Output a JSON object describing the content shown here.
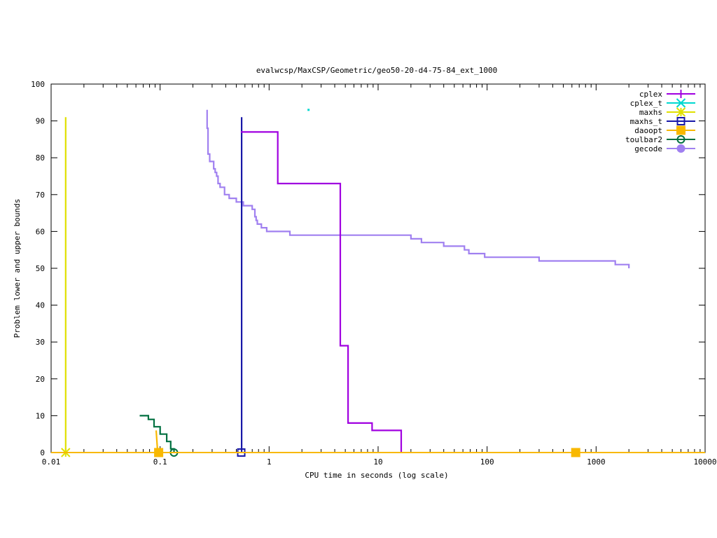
{
  "chart_data": {
    "type": "line",
    "title": "evalwcsp/MaxCSP/Geometric/geo50-20-d4-75-84_ext_1000",
    "xlabel": "CPU time in seconds (log scale)",
    "ylabel": "Problem lower and upper bounds",
    "xscale": "log",
    "xlim": [
      0.01,
      10000
    ],
    "ylim": [
      0,
      100
    ],
    "x_ticks": [
      0.01,
      0.1,
      1,
      10,
      100,
      1000,
      10000
    ],
    "x_tick_labels": [
      "0.01",
      "0.1",
      "1",
      "10",
      "100",
      "1000",
      "10000"
    ],
    "y_ticks": [
      0,
      10,
      20,
      30,
      40,
      50,
      60,
      70,
      80,
      90,
      100
    ],
    "y_tick_labels": [
      "0",
      "10",
      "20",
      "30",
      "40",
      "50",
      "60",
      "70",
      "80",
      "90",
      "100"
    ],
    "grid": false,
    "legend_position": "top-right",
    "series": [
      {
        "name": "cplex",
        "color": "#a000e0",
        "marker": "plus",
        "upper": [
          [
            0.55,
            87
          ],
          [
            1.2,
            87
          ],
          [
            1.2,
            73
          ],
          [
            4.5,
            73
          ],
          [
            4.5,
            29
          ],
          [
            5.3,
            29
          ],
          [
            5.3,
            8
          ],
          [
            8.8,
            8
          ],
          [
            8.8,
            6
          ],
          [
            16.3,
            6
          ],
          [
            16.3,
            0
          ]
        ],
        "lower": [],
        "markers": []
      },
      {
        "name": "cplex_t",
        "color": "#00d8d0",
        "marker": "x",
        "upper": [
          [
            2.3,
            93
          ]
        ],
        "lower": [],
        "markers": []
      },
      {
        "name": "maxhs",
        "color": "#e0e000",
        "marker": "star",
        "upper": [
          [
            0.0136,
            91
          ],
          [
            0.0136,
            0
          ]
        ],
        "lower": [],
        "markers": [
          [
            0.0136,
            0
          ]
        ]
      },
      {
        "name": "maxhs_t",
        "color": "#1818a8",
        "marker": "box",
        "upper": [
          [
            0.56,
            91
          ],
          [
            0.56,
            0
          ]
        ],
        "lower": [],
        "markers": [
          [
            0.555,
            0
          ]
        ]
      },
      {
        "name": "daoopt",
        "color": "#f8b800",
        "marker": "filled-box",
        "upper": [
          [
            0.092,
            6
          ],
          [
            0.095,
            0
          ]
        ],
        "lower": [
          [
            0.01,
            0
          ],
          [
            10000,
            0
          ]
        ],
        "markers": [
          [
            0.097,
            0
          ],
          [
            650,
            0
          ]
        ]
      },
      {
        "name": "toulbar2",
        "color": "#007040",
        "marker": "circle",
        "upper": [
          [
            0.065,
            10
          ],
          [
            0.078,
            10
          ],
          [
            0.078,
            9
          ],
          [
            0.088,
            9
          ],
          [
            0.088,
            7
          ],
          [
            0.1,
            7
          ],
          [
            0.1,
            5
          ],
          [
            0.115,
            5
          ],
          [
            0.115,
            3
          ],
          [
            0.125,
            3
          ],
          [
            0.125,
            1
          ],
          [
            0.134,
            1
          ],
          [
            0.134,
            0
          ]
        ],
        "lower": [
          [
            0.055,
            0
          ],
          [
            0.134,
            0
          ]
        ],
        "markers": [
          [
            0.134,
            0
          ]
        ]
      },
      {
        "name": "gecode",
        "color": "#a080f0",
        "marker": "filled-circle",
        "upper": [
          [
            0.27,
            93
          ],
          [
            0.27,
            88
          ],
          [
            0.275,
            88
          ],
          [
            0.275,
            81
          ],
          [
            0.285,
            81
          ],
          [
            0.285,
            79
          ],
          [
            0.31,
            79
          ],
          [
            0.31,
            77
          ],
          [
            0.32,
            77
          ],
          [
            0.32,
            76
          ],
          [
            0.33,
            76
          ],
          [
            0.33,
            75
          ],
          [
            0.34,
            75
          ],
          [
            0.34,
            73
          ],
          [
            0.355,
            73
          ],
          [
            0.355,
            72
          ],
          [
            0.39,
            72
          ],
          [
            0.39,
            70
          ],
          [
            0.43,
            70
          ],
          [
            0.43,
            69
          ],
          [
            0.5,
            69
          ],
          [
            0.5,
            68
          ],
          [
            0.58,
            68
          ],
          [
            0.58,
            67
          ],
          [
            0.7,
            67
          ],
          [
            0.7,
            66
          ],
          [
            0.74,
            66
          ],
          [
            0.74,
            64
          ],
          [
            0.76,
            64
          ],
          [
            0.76,
            63
          ],
          [
            0.78,
            63
          ],
          [
            0.78,
            62
          ],
          [
            0.85,
            62
          ],
          [
            0.85,
            61
          ],
          [
            0.95,
            61
          ],
          [
            0.95,
            60
          ],
          [
            1.55,
            60
          ],
          [
            1.55,
            59
          ],
          [
            20,
            59
          ],
          [
            20,
            58
          ],
          [
            25,
            58
          ],
          [
            25,
            57
          ],
          [
            40,
            57
          ],
          [
            40,
            56
          ],
          [
            62,
            56
          ],
          [
            62,
            55
          ],
          [
            68,
            55
          ],
          [
            68,
            54
          ],
          [
            95,
            54
          ],
          [
            95,
            53
          ],
          [
            300,
            53
          ],
          [
            300,
            52
          ],
          [
            1500,
            52
          ],
          [
            1500,
            51
          ],
          [
            2000,
            51
          ],
          [
            2000,
            50
          ]
        ],
        "lower": [],
        "markers": []
      }
    ]
  }
}
